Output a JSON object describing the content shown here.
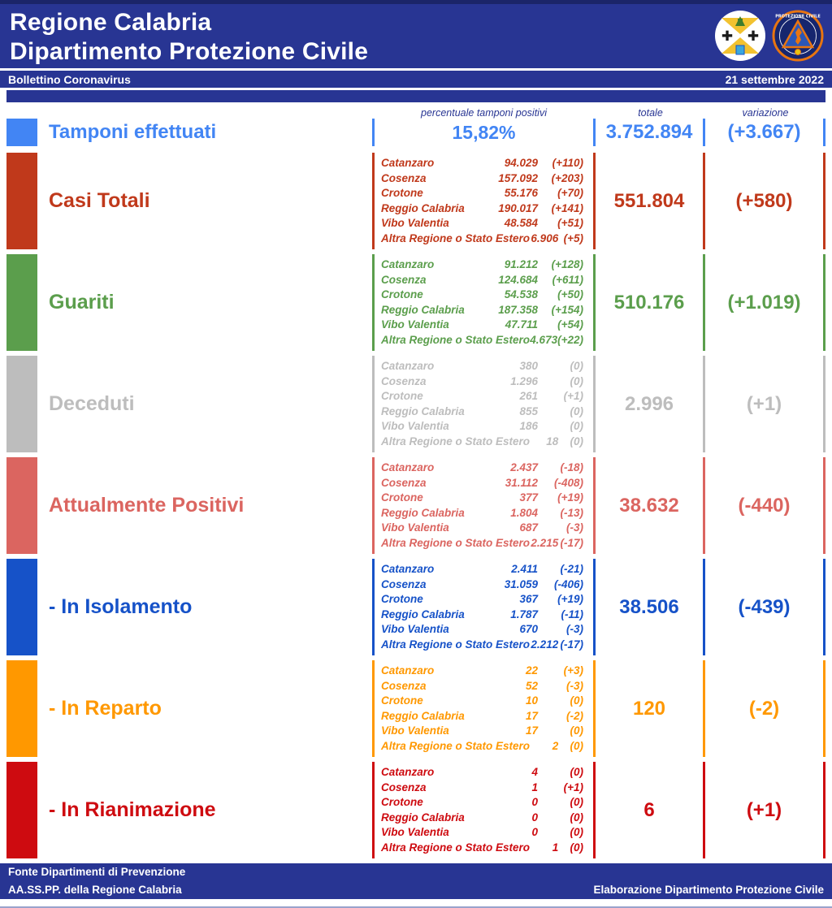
{
  "header": {
    "title_line1": "Regione Calabria",
    "title_line2": "Dipartimento Protezione Civile",
    "subbar_left": "Bollettino Coronavirus",
    "subbar_right": "21 settembre 2022"
  },
  "colors": {
    "navy": "#283593"
  },
  "icons": {
    "left_logo": "calabria-region-coat-of-arms",
    "right_logo": "protezione-civile-regione-calabria-emblem"
  },
  "columns": {
    "breakdown": "percentuale tamponi positivi",
    "totale": "totale",
    "variazione": "variazione"
  },
  "provinces": [
    "Catanzaro",
    "Cosenza",
    "Crotone",
    "Reggio Calabria",
    "Vibo Valentia",
    "Altra Regione o Stato Estero"
  ],
  "rows": [
    {
      "id": "tamponi-effettuati",
      "label": "Tamponi effettuati",
      "color": "#4285F4",
      "percent": "15,82%",
      "totale": "3.752.894",
      "variazione": "(+3.667)"
    },
    {
      "id": "casi-totali",
      "label": "Casi Totali",
      "color": "#C0391B",
      "breakdown": [
        {
          "value": "94.029",
          "delta": "(+110)"
        },
        {
          "value": "157.092",
          "delta": "(+203)"
        },
        {
          "value": "55.176",
          "delta": "(+70)"
        },
        {
          "value": "190.017",
          "delta": "(+141)"
        },
        {
          "value": "48.584",
          "delta": "(+51)"
        },
        {
          "value": "6.906",
          "delta": "(+5)"
        }
      ],
      "totale": "551.804",
      "variazione": "(+580)"
    },
    {
      "id": "guariti",
      "label": "Guariti",
      "color": "#5B9E4C",
      "breakdown": [
        {
          "value": "91.212",
          "delta": "(+128)"
        },
        {
          "value": "124.684",
          "delta": "(+611)"
        },
        {
          "value": "54.538",
          "delta": "(+50)"
        },
        {
          "value": "187.358",
          "delta": "(+154)"
        },
        {
          "value": "47.711",
          "delta": "(+54)"
        },
        {
          "value": "4.673",
          "delta": "(+22)"
        }
      ],
      "totale": "510.176",
      "variazione": "(+1.019)"
    },
    {
      "id": "deceduti",
      "label": "Deceduti",
      "color": "#BDBDBD",
      "breakdown": [
        {
          "value": "380",
          "delta": "(0)"
        },
        {
          "value": "1.296",
          "delta": "(0)"
        },
        {
          "value": "261",
          "delta": "(+1)"
        },
        {
          "value": "855",
          "delta": "(0)"
        },
        {
          "value": "186",
          "delta": "(0)"
        },
        {
          "value": "18",
          "delta": "(0)"
        }
      ],
      "totale": "2.996",
      "variazione": "(+1)"
    },
    {
      "id": "attualmente-positivi",
      "label": "Attualmente Positivi",
      "color": "#DB6560",
      "breakdown": [
        {
          "value": "2.437",
          "delta": "(-18)"
        },
        {
          "value": "31.112",
          "delta": "(-408)"
        },
        {
          "value": "377",
          "delta": "(+19)"
        },
        {
          "value": "1.804",
          "delta": "(-13)"
        },
        {
          "value": "687",
          "delta": "(-3)"
        },
        {
          "value": "2.215",
          "delta": "(-17)"
        }
      ],
      "totale": "38.632",
      "variazione": "(-440)"
    },
    {
      "id": "in-isolamento",
      "label": "- In Isolamento",
      "color": "#1652C8",
      "breakdown": [
        {
          "value": "2.411",
          "delta": "(-21)"
        },
        {
          "value": "31.059",
          "delta": "(-406)"
        },
        {
          "value": "367",
          "delta": "(+19)"
        },
        {
          "value": "1.787",
          "delta": "(-11)"
        },
        {
          "value": "670",
          "delta": "(-3)"
        },
        {
          "value": "2.212",
          "delta": "(-17)"
        }
      ],
      "totale": "38.506",
      "variazione": "(-439)"
    },
    {
      "id": "in-reparto",
      "label": "- In Reparto",
      "color": "#FF9800",
      "breakdown": [
        {
          "value": "22",
          "delta": "(+3)"
        },
        {
          "value": "52",
          "delta": "(-3)"
        },
        {
          "value": "10",
          "delta": "(0)"
        },
        {
          "value": "17",
          "delta": "(-2)"
        },
        {
          "value": "17",
          "delta": "(0)"
        },
        {
          "value": "2",
          "delta": "(0)"
        }
      ],
      "totale": "120",
      "variazione": "(-2)"
    },
    {
      "id": "in-rianimazione",
      "label": "- In Rianimazione",
      "color": "#CE0B10",
      "breakdown": [
        {
          "value": "4",
          "delta": "(0)"
        },
        {
          "value": "1",
          "delta": "(+1)"
        },
        {
          "value": "0",
          "delta": "(0)"
        },
        {
          "value": "0",
          "delta": "(0)"
        },
        {
          "value": "0",
          "delta": "(0)"
        },
        {
          "value": "1",
          "delta": "(0)"
        }
      ],
      "totale": "6",
      "variazione": "(+1)"
    }
  ],
  "footer": {
    "left_line1": "Fonte Dipartimenti di Prevenzione",
    "left_line2": "AA.SS.PP.  della Regione Calabria",
    "right": "Elaborazione Dipartimento Protezione Civile"
  }
}
